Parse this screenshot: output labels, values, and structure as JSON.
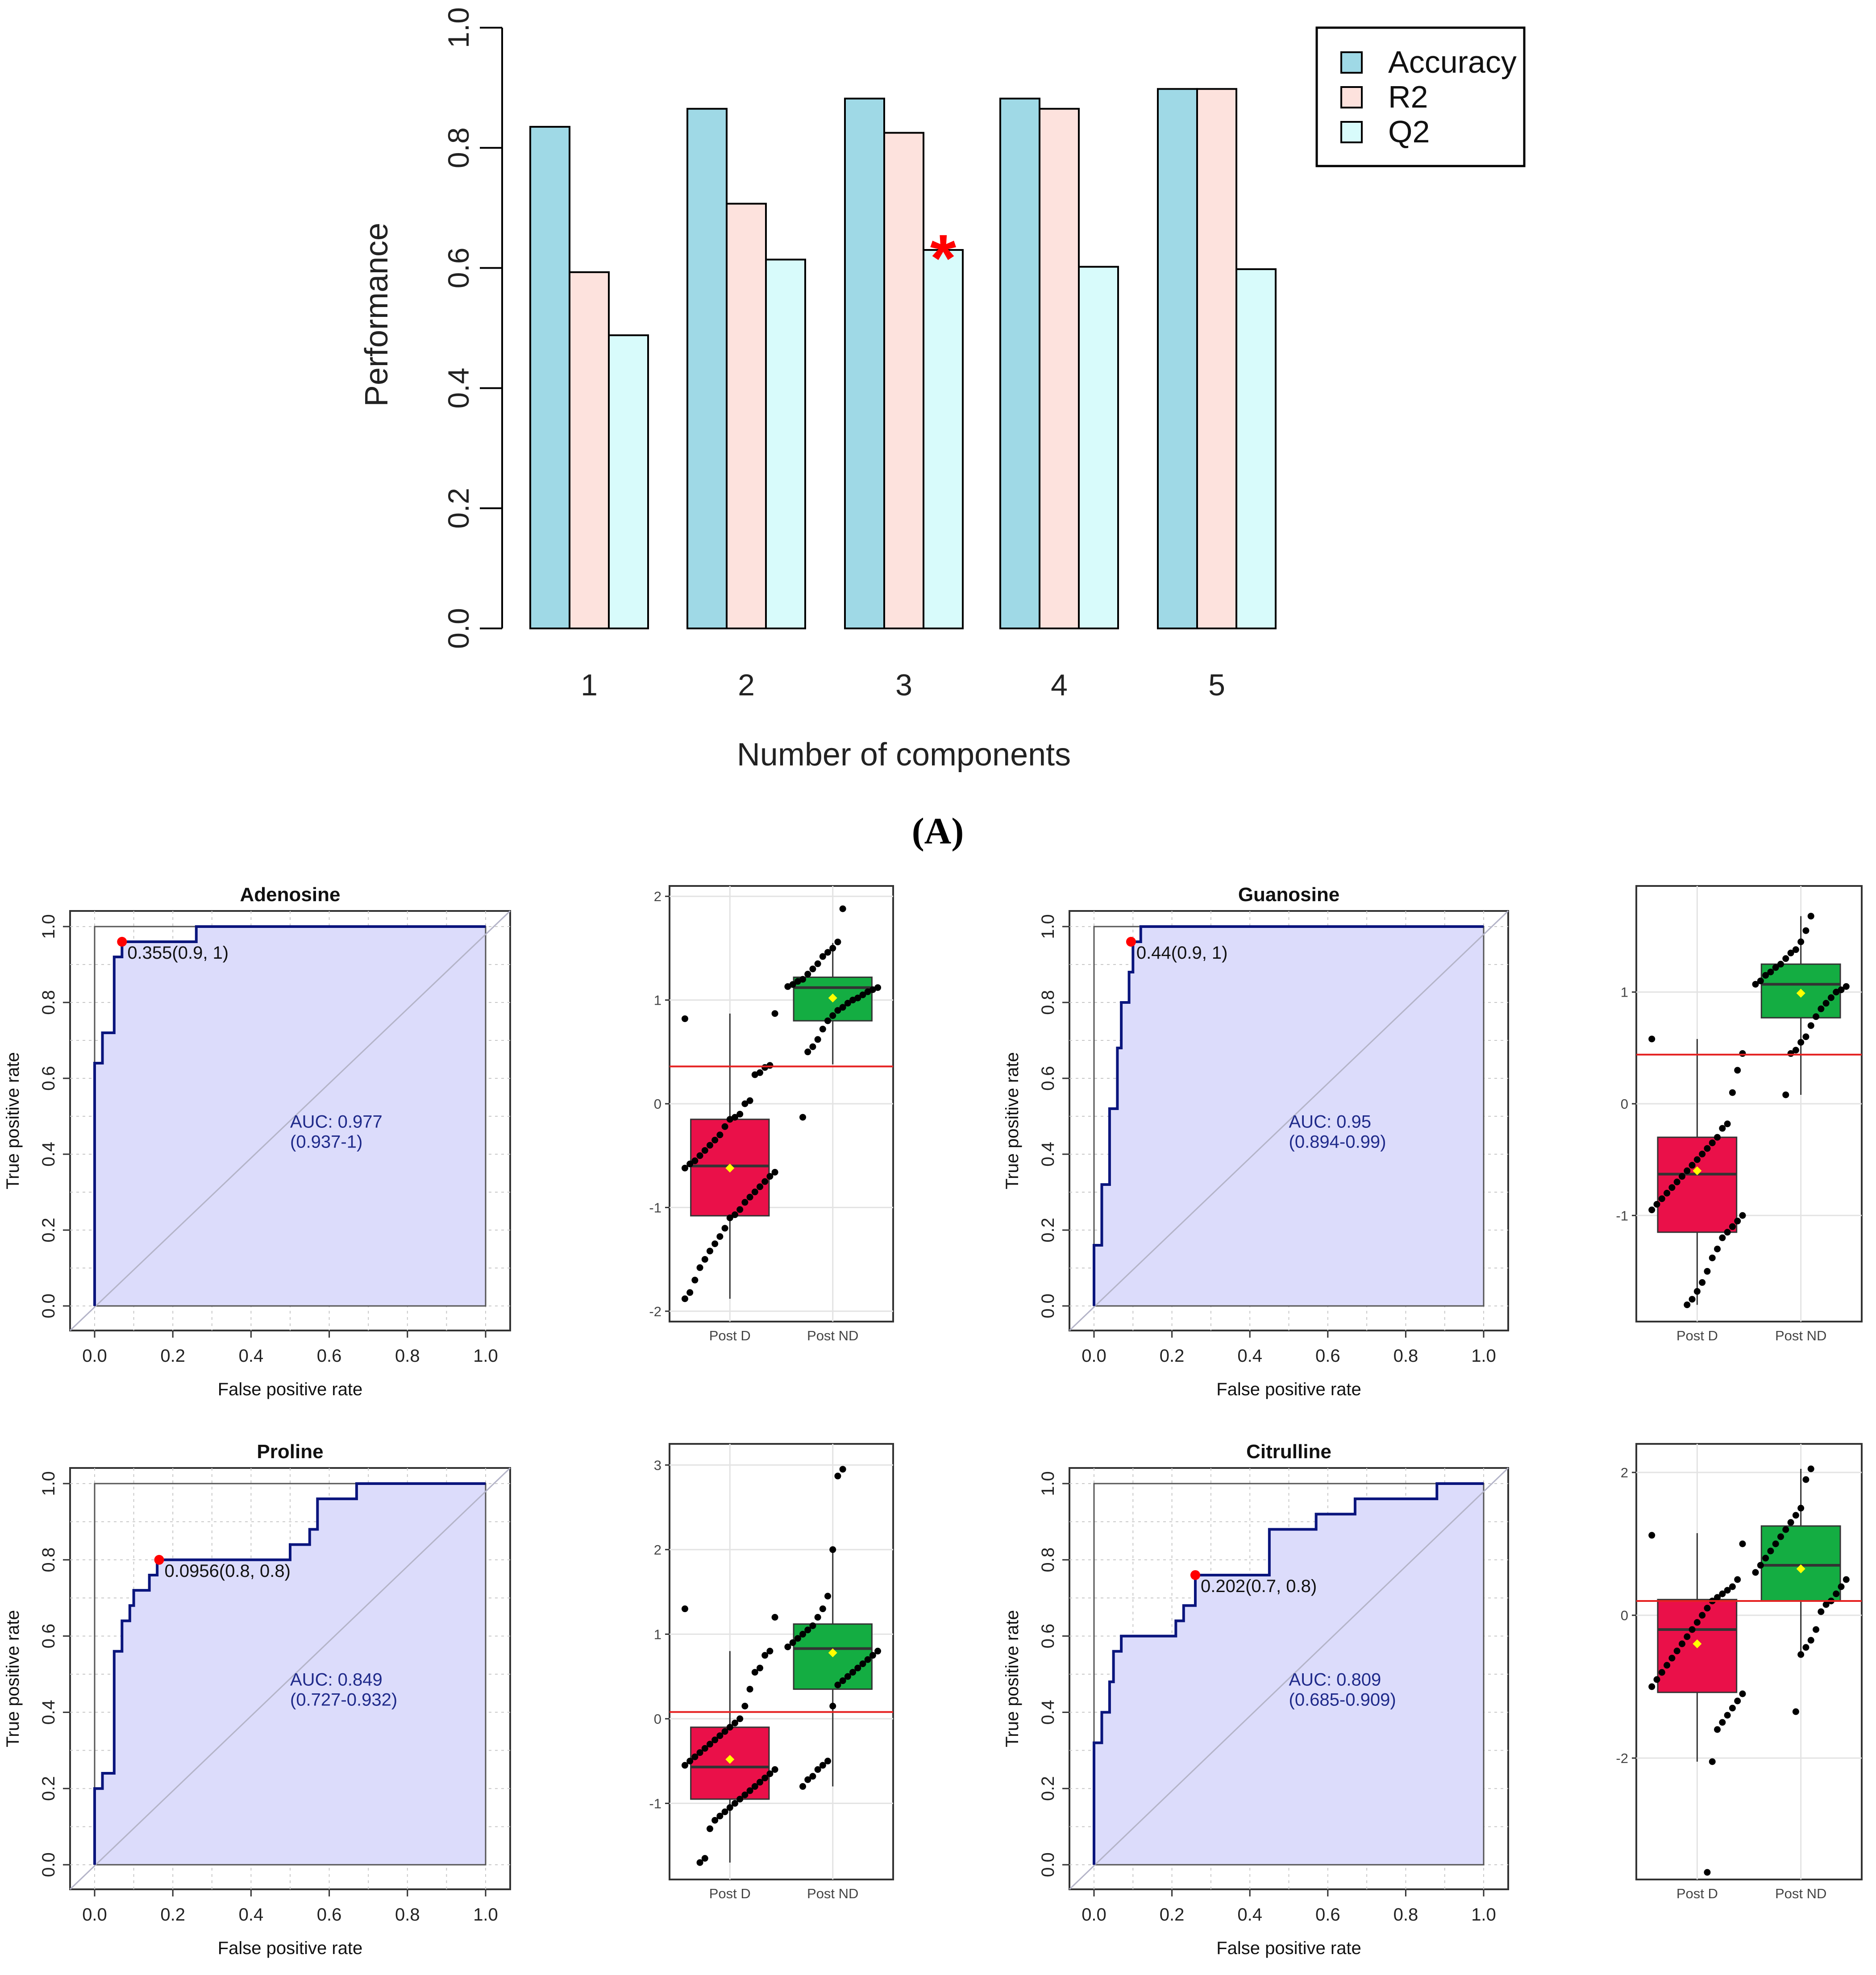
{
  "colors": {
    "accuracy": "#9fd9e6",
    "r2": "#fde2dd",
    "q2": "#d8fbfb",
    "roc_line": "#0a157d",
    "roc_fill": "#dcdcfb",
    "roc_text": "#1f2a8a",
    "marker": "#ff0000",
    "box_d": "#ea1049",
    "box_nd": "#14ad42",
    "mean": "#ffff00",
    "threshold": "#e52222",
    "star": "#ff0000"
  },
  "panel_a": {
    "label": "(A)",
    "chart_data": {
      "type": "bar",
      "categories": [
        "1",
        "2",
        "3",
        "4",
        "5"
      ],
      "series": [
        {
          "name": "Accuracy",
          "values": [
            0.835,
            0.865,
            0.882,
            0.882,
            0.898
          ]
        },
        {
          "name": "R2",
          "values": [
            0.593,
            0.707,
            0.825,
            0.865,
            0.898
          ]
        },
        {
          "name": "Q2",
          "values": [
            0.488,
            0.614,
            0.63,
            0.602,
            0.598
          ]
        }
      ],
      "xlabel": "Number of components",
      "ylabel": "Performance",
      "ylim": [
        0,
        1
      ],
      "yticks": [
        "0.0",
        "0.2",
        "0.4",
        "0.6",
        "0.8",
        "1.0"
      ],
      "legend": [
        "Accuracy",
        "R2",
        "Q2"
      ],
      "legend_position": "top-right",
      "annotation": {
        "text": "*",
        "category": "3",
        "series": "Q2"
      }
    }
  },
  "roc_common": {
    "xlabel": "False positive rate",
    "ylabel": "True positive rate",
    "ticks": [
      "0.0",
      "0.2",
      "0.4",
      "0.6",
      "0.8",
      "1.0"
    ]
  },
  "box_common": {
    "categories": [
      "Post D",
      "Post ND"
    ]
  },
  "chart_data": [
    {
      "type": "line",
      "subtype": "roc",
      "title": "Adenosine",
      "auc_label": "AUC: 0.977",
      "ci_label": "(0.937-1)",
      "cutoff_label": "0.355(0.9, 1)",
      "cutoff_point": [
        0.07,
        0.96
      ],
      "xlim": [
        0,
        1
      ],
      "ylim": [
        0,
        1
      ],
      "points": [
        [
          0,
          0
        ],
        [
          0,
          0.64
        ],
        [
          0.02,
          0.64
        ],
        [
          0.02,
          0.72
        ],
        [
          0.05,
          0.72
        ],
        [
          0.05,
          0.92
        ],
        [
          0.07,
          0.92
        ],
        [
          0.07,
          0.96
        ],
        [
          0.26,
          0.96
        ],
        [
          0.26,
          1
        ],
        [
          1,
          1
        ]
      ]
    },
    {
      "type": "scatter",
      "subtype": "boxplot",
      "metabolite": "Adenosine",
      "ylim": [
        -2.1,
        2.1
      ],
      "yticks": [
        -2,
        -1,
        0,
        1,
        2
      ],
      "threshold": 0.36,
      "groups": [
        {
          "name": "Post D",
          "q1": -1.08,
          "median": -0.6,
          "q3": -0.15,
          "whisker_low": -1.88,
          "whisker_high": 0.87,
          "mean": -0.62,
          "points": [
            0.82,
            0.87,
            0.37,
            0.35,
            0.3,
            0.28,
            0.03,
            0.0,
            -0.1,
            -0.13,
            -0.15,
            -0.22,
            -0.3,
            -0.35,
            -0.4,
            -0.45,
            -0.5,
            -0.55,
            -0.58,
            -0.62,
            -0.66,
            -0.7,
            -0.75,
            -0.8,
            -0.85,
            -0.9,
            -0.95,
            -1.02,
            -1.07,
            -1.1,
            -1.2,
            -1.28,
            -1.35,
            -1.42,
            -1.5,
            -1.58,
            -1.7,
            -1.82,
            -1.88
          ]
        },
        {
          "name": "Post ND",
          "q1": 0.8,
          "median": 1.12,
          "q3": 1.22,
          "whisker_low": 0.38,
          "whisker_high": 1.55,
          "mean": 1.02,
          "points": [
            1.88,
            1.56,
            1.5,
            1.46,
            1.42,
            1.35,
            1.3,
            1.25,
            1.2,
            1.18,
            1.15,
            1.13,
            1.12,
            1.1,
            1.08,
            1.05,
            1.02,
            1.0,
            0.97,
            0.93,
            0.9,
            0.85,
            0.8,
            0.72,
            0.62,
            0.55,
            0.5,
            -0.13
          ]
        }
      ]
    },
    {
      "type": "line",
      "subtype": "roc",
      "title": "Guanosine",
      "auc_label": "AUC: 0.95",
      "ci_label": "(0.894-0.99)",
      "cutoff_label": "0.44(0.9, 1)",
      "cutoff_point": [
        0.095,
        0.96
      ],
      "xlim": [
        0,
        1
      ],
      "ylim": [
        0,
        1
      ],
      "points": [
        [
          0,
          0
        ],
        [
          0,
          0.16
        ],
        [
          0.02,
          0.16
        ],
        [
          0.02,
          0.32
        ],
        [
          0.04,
          0.32
        ],
        [
          0.04,
          0.52
        ],
        [
          0.06,
          0.52
        ],
        [
          0.06,
          0.68
        ],
        [
          0.07,
          0.68
        ],
        [
          0.07,
          0.8
        ],
        [
          0.09,
          0.8
        ],
        [
          0.09,
          0.88
        ],
        [
          0.1,
          0.88
        ],
        [
          0.1,
          0.96
        ],
        [
          0.12,
          0.96
        ],
        [
          0.12,
          1
        ],
        [
          1,
          1
        ]
      ]
    },
    {
      "type": "scatter",
      "subtype": "boxplot",
      "metabolite": "Guanosine",
      "ylim": [
        -1.95,
        1.95
      ],
      "yticks": [
        -1,
        0,
        1
      ],
      "threshold": 0.44,
      "groups": [
        {
          "name": "Post D",
          "q1": -1.15,
          "median": -0.63,
          "q3": -0.3,
          "whisker_low": -1.8,
          "whisker_high": 0.58,
          "mean": -0.6,
          "points": [
            0.58,
            0.45,
            0.3,
            0.1,
            -0.18,
            -0.22,
            -0.3,
            -0.35,
            -0.4,
            -0.45,
            -0.5,
            -0.55,
            -0.6,
            -0.65,
            -0.7,
            -0.75,
            -0.8,
            -0.85,
            -0.9,
            -0.95,
            -1.0,
            -1.05,
            -1.1,
            -1.15,
            -1.2,
            -1.3,
            -1.38,
            -1.5,
            -1.6,
            -1.68,
            -1.75,
            -1.8
          ]
        },
        {
          "name": "Post ND",
          "q1": 0.77,
          "median": 1.07,
          "q3": 1.25,
          "whisker_low": 0.08,
          "whisker_high": 1.68,
          "mean": 0.99,
          "points": [
            1.68,
            1.55,
            1.45,
            1.38,
            1.35,
            1.3,
            1.25,
            1.22,
            1.18,
            1.15,
            1.1,
            1.07,
            1.05,
            1.02,
            1.0,
            0.95,
            0.9,
            0.85,
            0.78,
            0.7,
            0.6,
            0.55,
            0.48,
            0.45,
            0.08
          ]
        }
      ]
    },
    {
      "type": "line",
      "subtype": "roc",
      "title": "Proline",
      "auc_label": "AUC: 0.849",
      "ci_label": "(0.727-0.932)",
      "cutoff_label": "0.0956(0.8, 0.8)",
      "cutoff_point": [
        0.165,
        0.8
      ],
      "xlim": [
        0,
        1
      ],
      "ylim": [
        0,
        1
      ],
      "points": [
        [
          0,
          0
        ],
        [
          0,
          0.2
        ],
        [
          0.02,
          0.2
        ],
        [
          0.02,
          0.24
        ],
        [
          0.05,
          0.24
        ],
        [
          0.05,
          0.56
        ],
        [
          0.07,
          0.56
        ],
        [
          0.07,
          0.64
        ],
        [
          0.09,
          0.64
        ],
        [
          0.09,
          0.68
        ],
        [
          0.1,
          0.68
        ],
        [
          0.1,
          0.72
        ],
        [
          0.14,
          0.72
        ],
        [
          0.14,
          0.76
        ],
        [
          0.16,
          0.76
        ],
        [
          0.16,
          0.8
        ],
        [
          0.5,
          0.8
        ],
        [
          0.5,
          0.84
        ],
        [
          0.55,
          0.84
        ],
        [
          0.55,
          0.88
        ],
        [
          0.57,
          0.88
        ],
        [
          0.57,
          0.96
        ],
        [
          0.67,
          0.96
        ],
        [
          0.67,
          1
        ],
        [
          1,
          1
        ]
      ]
    },
    {
      "type": "scatter",
      "subtype": "boxplot",
      "metabolite": "Proline",
      "ylim": [
        -1.9,
        3.25
      ],
      "yticks": [
        -1,
        0,
        1,
        2,
        3
      ],
      "threshold": 0.08,
      "groups": [
        {
          "name": "Post D",
          "q1": -0.95,
          "median": -0.57,
          "q3": -0.1,
          "whisker_low": -1.7,
          "whisker_high": 0.8,
          "mean": -0.48,
          "points": [
            1.3,
            1.2,
            0.8,
            0.75,
            0.6,
            0.55,
            0.35,
            0.15,
            0.0,
            -0.05,
            -0.1,
            -0.15,
            -0.2,
            -0.25,
            -0.3,
            -0.35,
            -0.4,
            -0.45,
            -0.5,
            -0.55,
            -0.6,
            -0.65,
            -0.7,
            -0.75,
            -0.8,
            -0.85,
            -0.9,
            -0.95,
            -1.0,
            -1.05,
            -1.1,
            -1.15,
            -1.2,
            -1.3,
            -1.65,
            -1.7
          ]
        },
        {
          "name": "Post ND",
          "q1": 0.35,
          "median": 0.83,
          "q3": 1.12,
          "whisker_low": -0.8,
          "whisker_high": 2.0,
          "mean": 0.78,
          "points": [
            2.95,
            2.87,
            2.0,
            1.45,
            1.3,
            1.2,
            1.1,
            1.05,
            1.0,
            0.95,
            0.9,
            0.85,
            0.8,
            0.75,
            0.7,
            0.65,
            0.6,
            0.55,
            0.5,
            0.45,
            0.4,
            0.15,
            -0.5,
            -0.55,
            -0.6,
            -0.68,
            -0.72,
            -0.8
          ]
        }
      ]
    },
    {
      "type": "scatter",
      "subtype": "boxplot",
      "metabolite": "Citrulline",
      "ylim": [
        -3.7,
        2.4
      ],
      "yticks": [
        -2,
        0,
        2
      ],
      "threshold": 0.2,
      "groups": [
        {
          "name": "Post D",
          "q1": -1.08,
          "median": -0.2,
          "q3": 0.22,
          "whisker_low": -2.05,
          "whisker_high": 1.15,
          "mean": -0.4,
          "points": [
            1.12,
            1.0,
            0.5,
            0.4,
            0.35,
            0.3,
            0.25,
            0.2,
            0.1,
            0.0,
            -0.1,
            -0.2,
            -0.3,
            -0.4,
            -0.5,
            -0.6,
            -0.7,
            -0.8,
            -0.9,
            -1.0,
            -1.1,
            -1.2,
            -1.3,
            -1.4,
            -1.5,
            -1.6,
            -2.05,
            -3.6
          ]
        },
        {
          "name": "Post ND",
          "q1": 0.2,
          "median": 0.7,
          "q3": 1.25,
          "whisker_low": -0.55,
          "whisker_high": 2.05,
          "mean": 0.65,
          "points": [
            2.05,
            1.9,
            1.5,
            1.4,
            1.3,
            1.2,
            1.1,
            1.0,
            0.9,
            0.8,
            0.7,
            0.6,
            0.5,
            0.4,
            0.3,
            0.2,
            0.15,
            0.05,
            -0.2,
            -0.35,
            -0.45,
            -0.55,
            -1.35
          ]
        }
      ]
    },
    {
      "type": "line",
      "subtype": "roc",
      "title": "Citrulline",
      "auc_label": "AUC: 0.809",
      "ci_label": "(0.685-0.909)",
      "cutoff_label": "0.202(0.7, 0.8)",
      "cutoff_point": [
        0.26,
        0.76
      ],
      "xlim": [
        0,
        1
      ],
      "ylim": [
        0,
        1
      ],
      "points": [
        [
          0,
          0
        ],
        [
          0,
          0.32
        ],
        [
          0.02,
          0.32
        ],
        [
          0.02,
          0.4
        ],
        [
          0.04,
          0.4
        ],
        [
          0.04,
          0.48
        ],
        [
          0.05,
          0.48
        ],
        [
          0.05,
          0.56
        ],
        [
          0.07,
          0.56
        ],
        [
          0.07,
          0.6
        ],
        [
          0.21,
          0.6
        ],
        [
          0.21,
          0.64
        ],
        [
          0.23,
          0.64
        ],
        [
          0.23,
          0.68
        ],
        [
          0.26,
          0.68
        ],
        [
          0.26,
          0.76
        ],
        [
          0.45,
          0.76
        ],
        [
          0.45,
          0.88
        ],
        [
          0.57,
          0.88
        ],
        [
          0.57,
          0.92
        ],
        [
          0.67,
          0.92
        ],
        [
          0.67,
          0.96
        ],
        [
          0.88,
          0.96
        ],
        [
          0.88,
          1
        ],
        [
          1,
          1
        ]
      ]
    }
  ]
}
